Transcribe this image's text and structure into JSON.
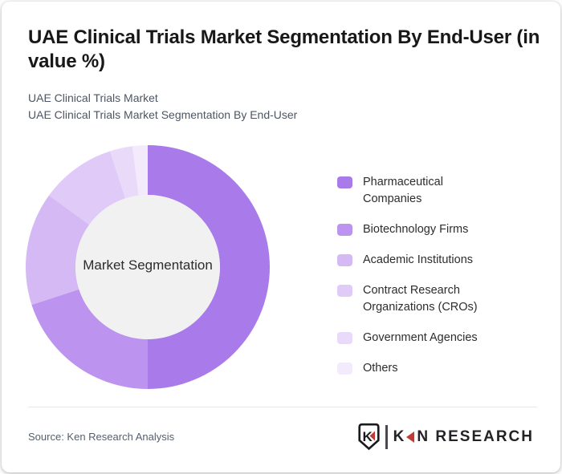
{
  "card": {
    "title": "UAE Clinical Trials Market Segmentation By End-User (in value %)",
    "subtitle_line1": "UAE Clinical Trials Market",
    "subtitle_line2": "UAE Clinical Trials Market Segmentation By End-User",
    "source": "Source: Ken Research Analysis",
    "logo": {
      "shield_letter": "K",
      "wordmark_prefix": "K",
      "wordmark_suffix": "N RESEARCH",
      "accent_color": "#c23b33"
    }
  },
  "chart_data": {
    "type": "pie",
    "donut": true,
    "title": "UAE Clinical Trials Market Segmentation By End-User (in value %)",
    "center_label": "Market Segmentation",
    "start_angle_deg": 0,
    "direction": "clockwise",
    "legend_position": "right",
    "inner_circle_color": "#f1f1f2",
    "segments": [
      {
        "label": "Pharmaceutical Companies",
        "value_pct": 50,
        "color": "#a97ae9"
      },
      {
        "label": "Biotechnology Firms",
        "value_pct": 20,
        "color": "#bc93ee"
      },
      {
        "label": "Academic Institutions",
        "value_pct": 15,
        "color": "#d5b9f4"
      },
      {
        "label": "Contract Research Organizations (CROs)",
        "value_pct": 10,
        "color": "#e0cbf8"
      },
      {
        "label": "Government Agencies",
        "value_pct": 3,
        "color": "#e9dafa"
      },
      {
        "label": "Others",
        "value_pct": 2,
        "color": "#f3eafc"
      }
    ]
  }
}
